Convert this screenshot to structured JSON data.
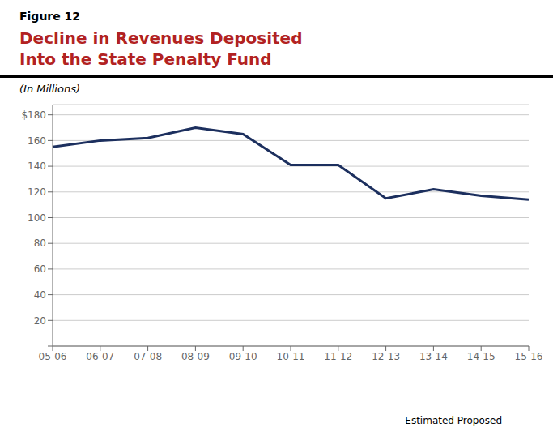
{
  "chart_data": {
    "type": "line",
    "title": [
      "Decline in Revenues Deposited",
      "Into the State Penalty Fund"
    ],
    "ylabel": "(In Millions)",
    "annotations": [
      "Figure 12",
      "Estimated Proposed"
    ],
    "categories": [
      "05-06",
      "06-07",
      "07-08",
      "08-09",
      "09-10",
      "10-11",
      "11-12",
      "12-13",
      "13-14",
      "14-15",
      "15-16"
    ],
    "values": [
      155,
      160,
      162,
      170,
      165,
      141,
      141,
      115,
      122,
      117,
      114
    ],
    "color": "#1c2f5e",
    "ylim": [
      0,
      188
    ],
    "yticks": [
      {
        "value": 0,
        "label": null
      },
      20,
      40,
      60,
      80,
      100,
      120,
      140,
      160,
      {
        "value": 180,
        "label": "$180"
      }
    ],
    "grid": "y"
  }
}
